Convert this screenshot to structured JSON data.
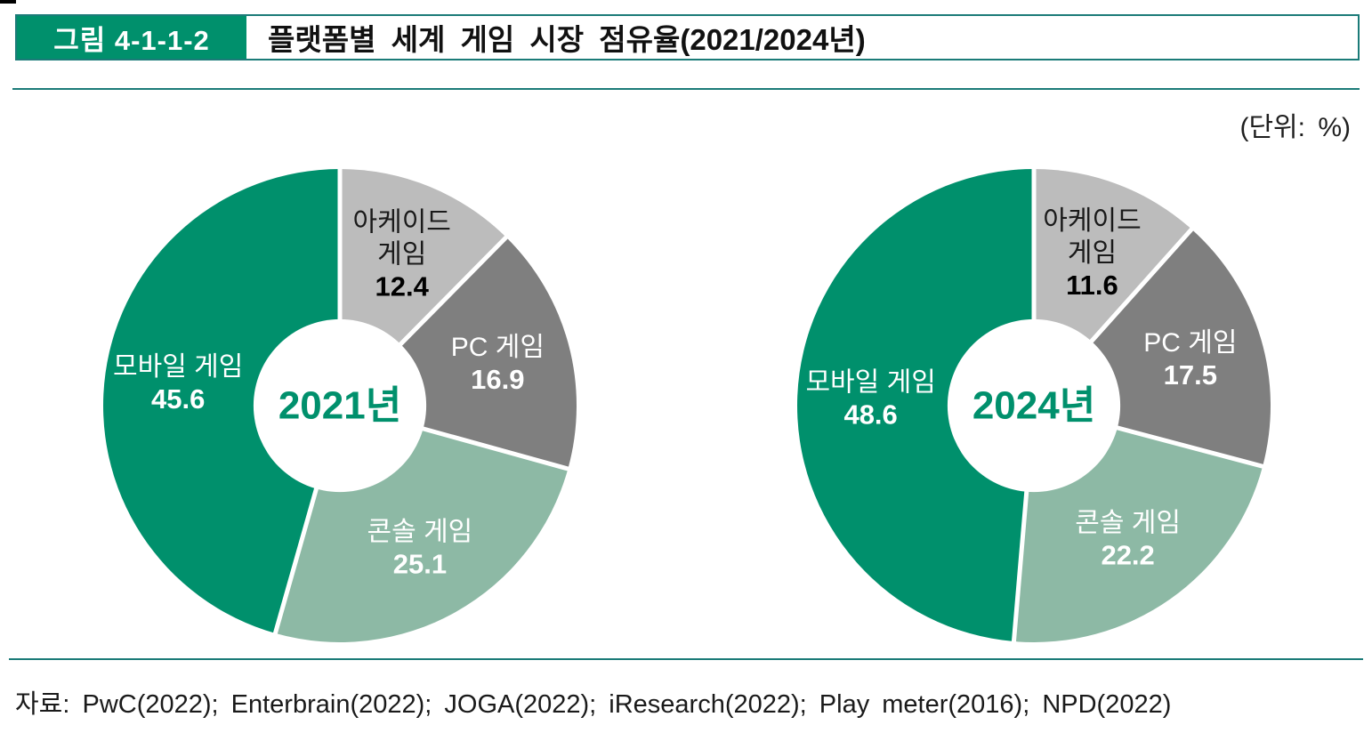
{
  "header": {
    "figure_label": "그림 4-1-1-2",
    "title": "플랫폼별 세계 게임 시장 점유율(2021/2024년)"
  },
  "unit_label": "(단위: %)",
  "source": "자료: PwC(2022); Enterbrain(2022); JOGA(2022); iResearch(2022); Play meter(2016); NPD(2022)",
  "colors": {
    "brand_green": "#00906C",
    "sage_green": "#8DB9A5",
    "dark_gray": "#7F7F7F",
    "light_gray": "#BCBCBC",
    "rule_teal": "#1B7B78",
    "title_text": "#111111"
  },
  "chart_data": [
    {
      "type": "pie",
      "title": "2021년",
      "center_label": "2021년",
      "center_label_color": "#00906C",
      "unit": "%",
      "start_angle_deg": 0,
      "direction": "clockwise",
      "inner_radius_ratio": 0.365,
      "label_radius_ratio": 0.69,
      "categories": [
        "아케이드 게임",
        "PC 게임",
        "콘솔 게임",
        "모바일 게임"
      ],
      "values": [
        12.4,
        16.9,
        25.1,
        45.6
      ],
      "slices": [
        {
          "key": "arcade",
          "name": "아케이드 게임",
          "name_lines": [
            "아케이드",
            "게임"
          ],
          "value": 12.4,
          "display_value": "12.4",
          "color": "#BCBCBC",
          "text_color": "#1A1A1A",
          "value_color": "#000000"
        },
        {
          "key": "pc",
          "name": "PC 게임",
          "name_lines": [
            "PC 게임"
          ],
          "value": 16.9,
          "display_value": "16.9",
          "color": "#7F7F7F",
          "text_color": "#FFFFFF",
          "value_color": "#FFFFFF"
        },
        {
          "key": "console",
          "name": "콘솔 게임",
          "name_lines": [
            "콘솔 게임"
          ],
          "value": 25.1,
          "display_value": "25.1",
          "color": "#8DB9A5",
          "text_color": "#FFFFFF",
          "value_color": "#FFFFFF"
        },
        {
          "key": "mobile",
          "name": "모바일 게임",
          "name_lines": [
            "모바일 게임"
          ],
          "value": 45.6,
          "display_value": "45.6",
          "color": "#00906C",
          "text_color": "#FFFFFF",
          "value_color": "#FFFFFF"
        }
      ]
    },
    {
      "type": "pie",
      "title": "2024년",
      "center_label": "2024년",
      "center_label_color": "#00906C",
      "unit": "%",
      "start_angle_deg": 0,
      "direction": "clockwise",
      "inner_radius_ratio": 0.365,
      "label_radius_ratio": 0.69,
      "categories": [
        "아케이드 게임",
        "PC 게임",
        "콘솔 게임",
        "모바일 게임"
      ],
      "values": [
        11.6,
        17.5,
        22.2,
        48.6
      ],
      "slices": [
        {
          "key": "arcade",
          "name": "아케이드 게임",
          "name_lines": [
            "아케이드",
            "게임"
          ],
          "value": 11.6,
          "display_value": "11.6",
          "color": "#BCBCBC",
          "text_color": "#1A1A1A",
          "value_color": "#000000"
        },
        {
          "key": "pc",
          "name": "PC 게임",
          "name_lines": [
            "PC 게임"
          ],
          "value": 17.5,
          "display_value": "17.5",
          "color": "#7F7F7F",
          "text_color": "#FFFFFF",
          "value_color": "#FFFFFF"
        },
        {
          "key": "console",
          "name": "콘솔 게임",
          "name_lines": [
            "콘솔 게임"
          ],
          "value": 22.2,
          "display_value": "22.2",
          "color": "#8DB9A5",
          "text_color": "#FFFFFF",
          "value_color": "#FFFFFF"
        },
        {
          "key": "mobile",
          "name": "모바일 게임",
          "name_lines": [
            "모바일 게임"
          ],
          "value": 48.6,
          "display_value": "48.6",
          "color": "#00906C",
          "text_color": "#FFFFFF",
          "value_color": "#FFFFFF"
        }
      ]
    }
  ]
}
